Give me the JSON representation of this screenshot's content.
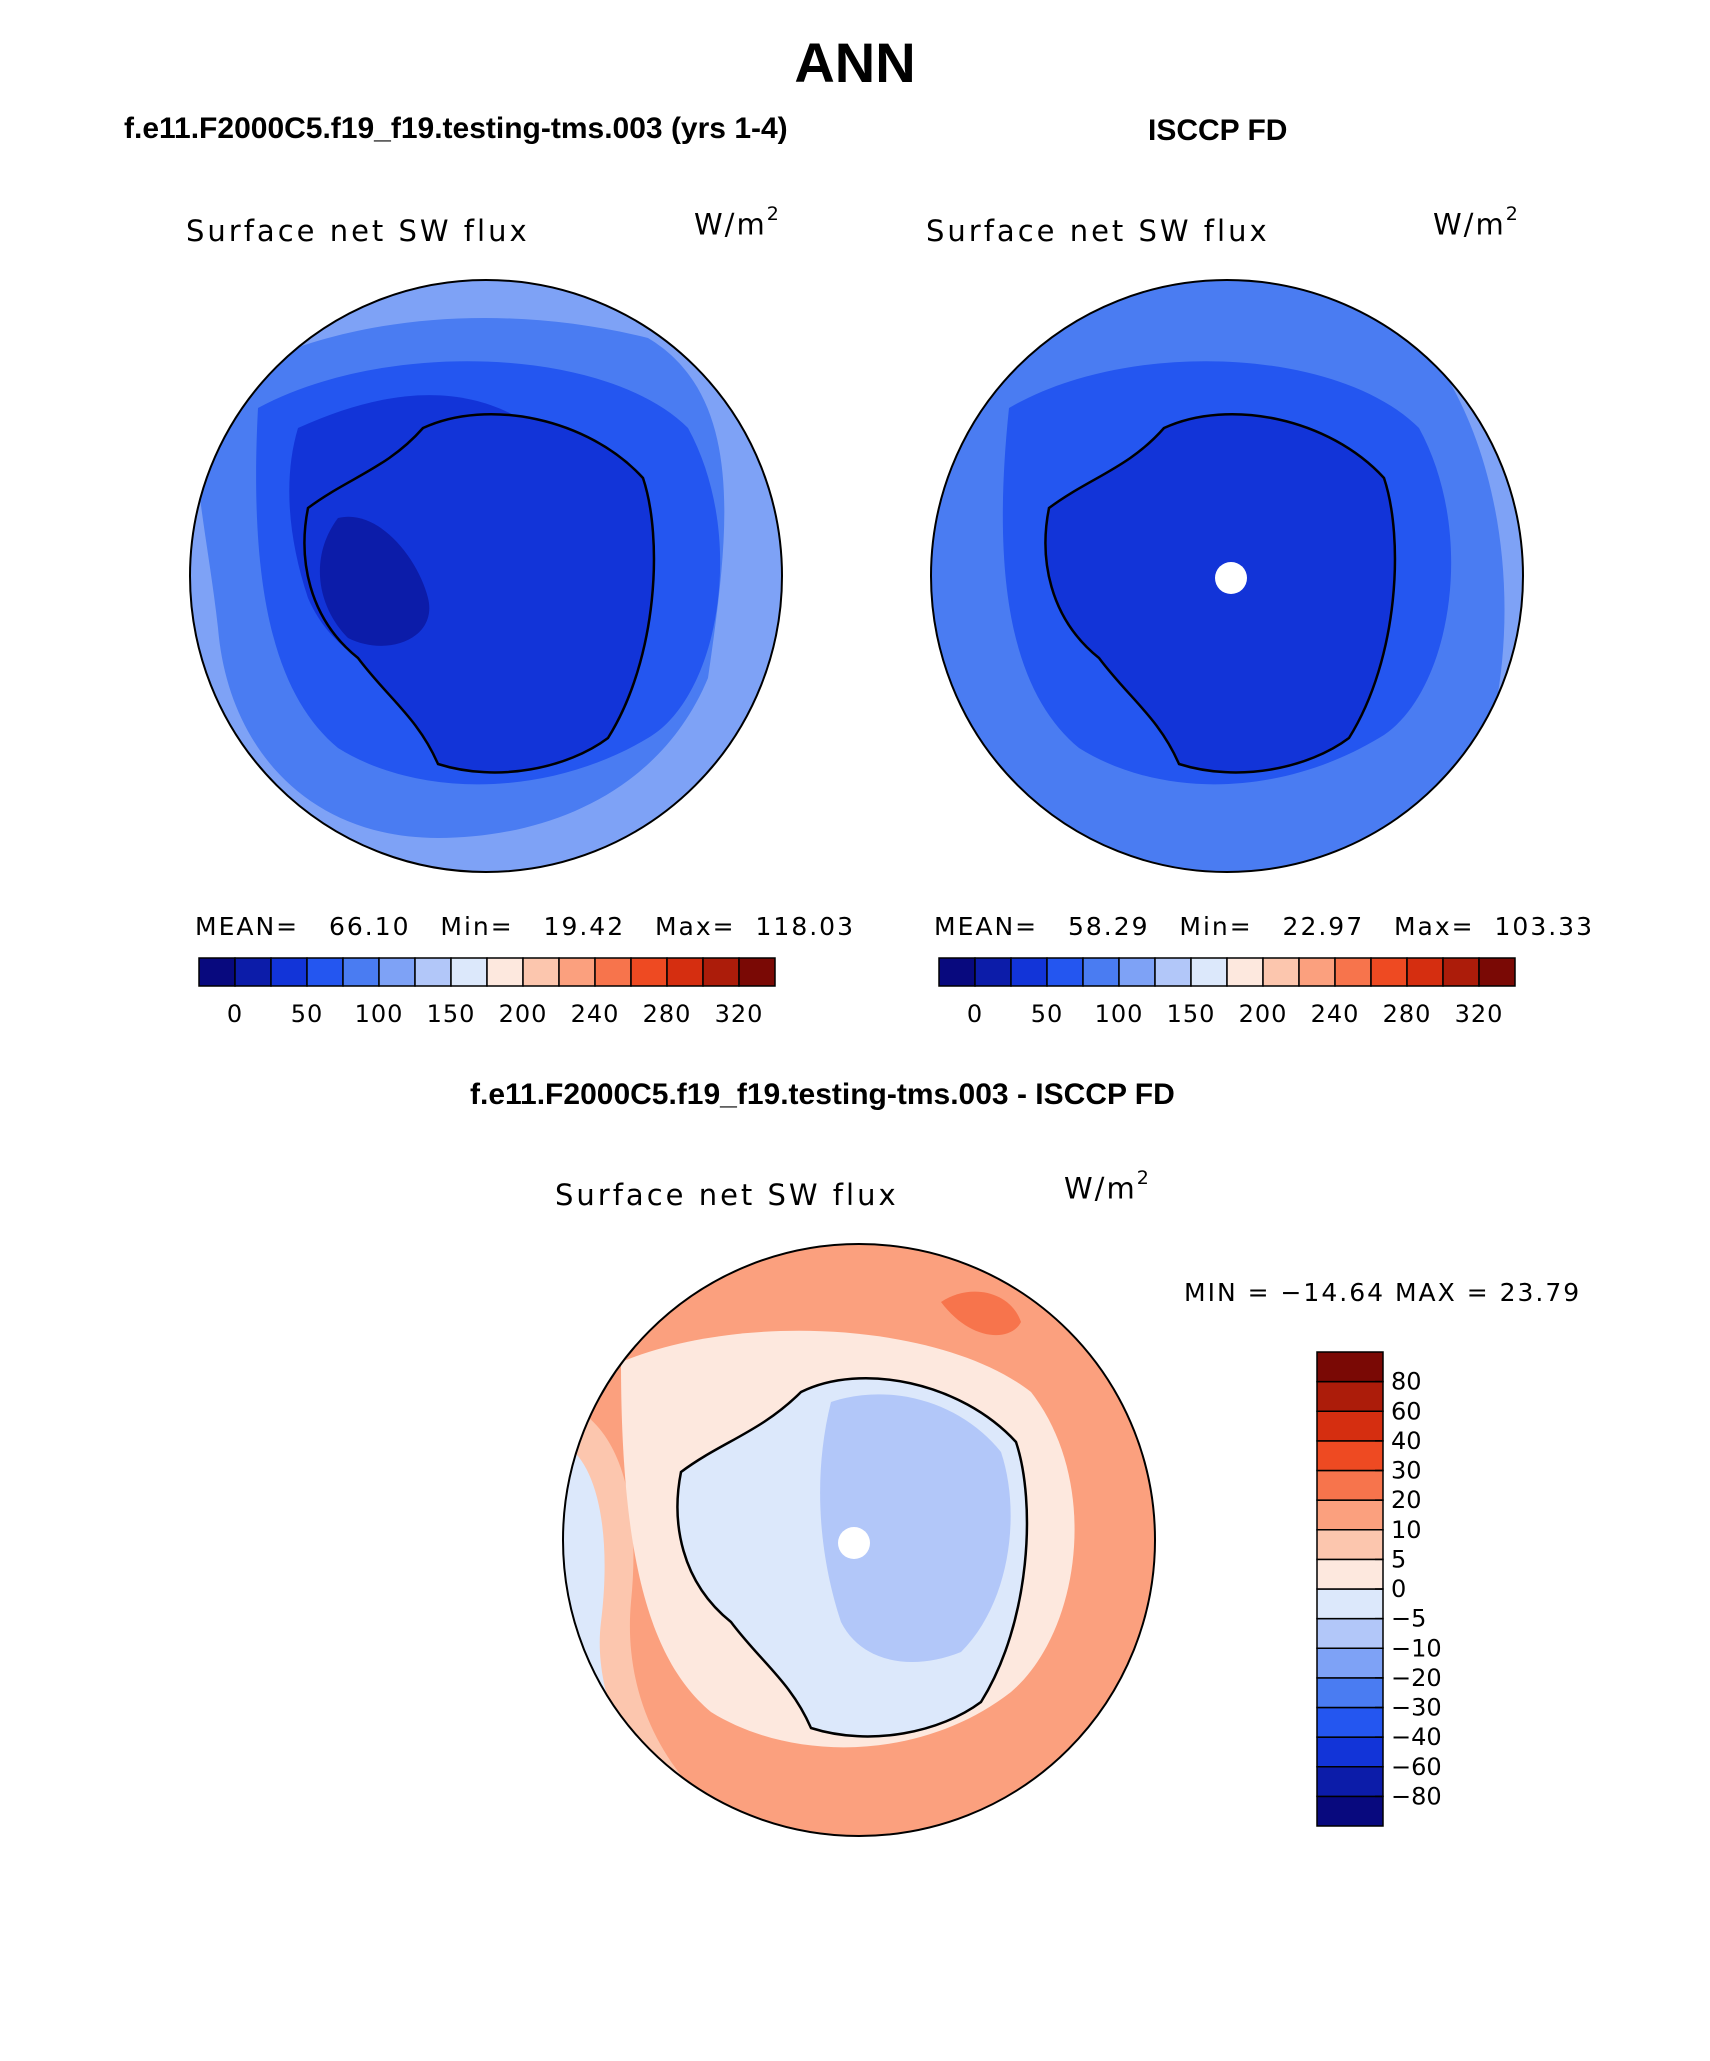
{
  "title": "ANN",
  "panels": [
    {
      "case": "f.e11.F2000C5.f19_f19.testing-tms.003 (yrs 1-4)",
      "variable": "Surface net SW flux",
      "units": {
        "base": "W/m",
        "exp": "2"
      },
      "stats": {
        "mean_label": "MEAN=",
        "mean": "66.10",
        "min_label": "Min=",
        "min": "19.42",
        "max_label": "Max=",
        "max": "118.03"
      }
    },
    {
      "case": "ISCCP FD",
      "variable": "Surface net SW flux",
      "units": {
        "base": "W/m",
        "exp": "2"
      },
      "stats": {
        "mean_label": "MEAN=",
        "mean": "58.29",
        "min_label": "Min=",
        "min": "22.97",
        "max_label": "Max=",
        "max": "103.33"
      }
    },
    {
      "case": "f.e11.F2000C5.f19_f19.testing-tms.003 - ISCCP FD",
      "variable": "Surface net SW flux",
      "units": {
        "base": "W/m",
        "exp": "2"
      },
      "minmax": "MIN = −14.64 MAX =   23.79"
    }
  ],
  "colorbar_top": {
    "colors": [
      "#08097e",
      "#0c1ca9",
      "#1234d8",
      "#2456f0",
      "#4a7cf2",
      "#7ea2f6",
      "#b2c7f9",
      "#dce8fb",
      "#fde8de",
      "#fcc6ae",
      "#fba07e",
      "#f7744c",
      "#ee4a22",
      "#d52e10",
      "#ac1c0a",
      "#7a0905"
    ],
    "labels": [
      "0",
      "50",
      "100",
      "150",
      "200",
      "240",
      "280",
      "320"
    ]
  },
  "colorbar_diff": {
    "colors": [
      "#08097e",
      "#0c1ca9",
      "#1234d8",
      "#2456f0",
      "#4a7cf2",
      "#7ea2f6",
      "#b2c7f9",
      "#dce8fb",
      "#fde8de",
      "#fcc6ae",
      "#fba07e",
      "#f7744c",
      "#ee4a22",
      "#d52e10",
      "#ac1c0a",
      "#7a0905"
    ],
    "labels": [
      "−80",
      "−60",
      "−40",
      "−30",
      "−20",
      "−10",
      "−5",
      "0",
      "5",
      "10",
      "20",
      "30",
      "40",
      "60",
      "80"
    ]
  }
}
